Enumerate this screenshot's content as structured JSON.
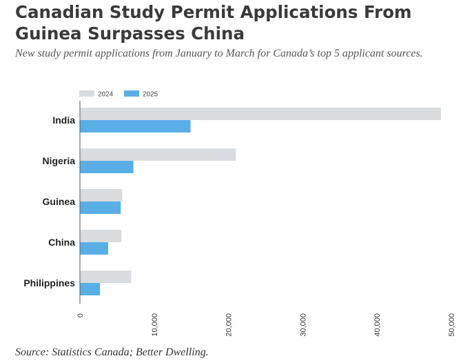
{
  "chart_data": {
    "type": "bar",
    "orientation": "horizontal",
    "title": "Canadian Study Permit Applications From Guinea Surpasses China",
    "subtitle": "New study permit applications from January to March for Canada’s top 5 applicant sources.",
    "source": "Source: Statistics Canada; Better Dwelling.",
    "categories": [
      "India",
      "Nigeria",
      "Guinea",
      "China",
      "Philippines"
    ],
    "series": [
      {
        "name": "2024",
        "color": "#d9dcdf",
        "values": [
          48600,
          21000,
          5700,
          5600,
          6900
        ]
      },
      {
        "name": "2025",
        "color": "#5aaee6",
        "values": [
          14900,
          7200,
          5500,
          3800,
          2700
        ]
      }
    ],
    "xlim": [
      0,
      50000
    ],
    "xticks": [
      0,
      10000,
      20000,
      30000,
      40000,
      50000
    ],
    "xtick_labels": [
      "0",
      "10,000",
      "20,000",
      "30,000",
      "40,000",
      "50,000"
    ],
    "legend": "top-left",
    "grid": false
  }
}
